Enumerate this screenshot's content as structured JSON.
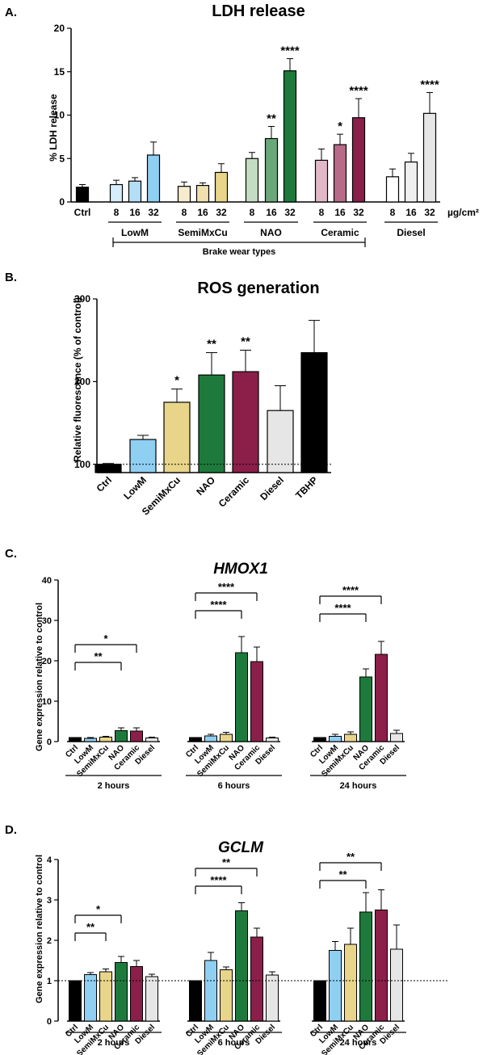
{
  "colors": {
    "ctrl": "#000000",
    "lowm": "#8fcff2",
    "semi": "#e8d58a",
    "nao": "#1e7a3c",
    "ceramic": "#8b1f4a",
    "diesel": "#e6e6e6",
    "tbhp": "#000000",
    "nao_light": "#c4ddc2",
    "nao_mid": "#6aa87a",
    "cer_light": "#e0b8c8",
    "cer_mid": "#b86a88",
    "low_light": "#d6eefb",
    "low_mid": "#b4def6",
    "semi_light": "#f6eccd",
    "semi_mid": "#efe0ad",
    "dsl_light": "#ffffff",
    "dsl_mid": "#f0f0f0"
  },
  "chart_data": [
    {
      "panel": "A.",
      "type": "bar",
      "title": "LDH release",
      "ylabel": "% LDH release",
      "ylim": [
        0,
        20
      ],
      "yticks": [
        "0",
        "5",
        "10",
        "15",
        "20"
      ],
      "unit": "µg/cm²",
      "bracket_label": "Brake wear types",
      "group_labels": [
        "LowM",
        "SemiMxCu",
        "NAO",
        "Ceramic",
        "Diesel"
      ],
      "categories": [
        "Ctrl",
        "8",
        "16",
        "32",
        "8",
        "16",
        "32",
        "8",
        "16",
        "32",
        "8",
        "16",
        "32",
        "8",
        "16",
        "32"
      ],
      "values": [
        1.7,
        2.0,
        2.4,
        5.4,
        1.8,
        1.9,
        3.4,
        5.0,
        7.3,
        15.1,
        4.8,
        6.6,
        9.7,
        2.9,
        4.6,
        10.2
      ],
      "errors": [
        0.3,
        0.5,
        0.4,
        1.5,
        0.5,
        0.3,
        1.0,
        0.7,
        1.4,
        1.4,
        1.3,
        1.2,
        2.2,
        0.9,
        1.0,
        2.4
      ],
      "significance": [
        "",
        "",
        "",
        "",
        "",
        "",
        "",
        "",
        "**",
        "****",
        "",
        "*",
        "****",
        "",
        "",
        "****"
      ]
    },
    {
      "panel": "B.",
      "type": "bar",
      "title": "ROS generation",
      "ylabel": "Relative fluorescence (% of control)",
      "ylim": [
        90,
        300
      ],
      "yticks": [
        "100",
        "200",
        "300"
      ],
      "reference_line": 100,
      "categories": [
        "Ctrl",
        "LowM",
        "SemiMxCu",
        "NAO",
        "Ceramic",
        "Diesel",
        "TBHP"
      ],
      "values": [
        100,
        130,
        175,
        208,
        212,
        165,
        235
      ],
      "errors": [
        1,
        5,
        16,
        27,
        26,
        30,
        39
      ],
      "significance": [
        "",
        "",
        "*",
        "**",
        "**",
        "",
        ""
      ]
    },
    {
      "panel": "C.",
      "type": "bar",
      "title": "HMOX1",
      "ylabel": "Gene expression relative to control",
      "ylim": [
        0,
        40
      ],
      "yticks": [
        "0",
        "10",
        "20",
        "30",
        "40"
      ],
      "categories": [
        "Ctrl",
        "LowM",
        "SemiMxCu",
        "NAO",
        "Ceramic",
        "Diesel"
      ],
      "time_labels": [
        "2 hours",
        "6 hours",
        "24 hours"
      ],
      "series": [
        {
          "values": [
            1,
            0.8,
            1.1,
            2.7,
            2.6,
            0.9
          ],
          "errors": [
            0,
            0.2,
            0.2,
            0.7,
            0.8,
            0.2
          ]
        },
        {
          "values": [
            1,
            1.4,
            1.8,
            22,
            19.8,
            0.9
          ],
          "errors": [
            0,
            0.4,
            0.5,
            4,
            3.6,
            0.2
          ]
        },
        {
          "values": [
            1,
            1.3,
            1.8,
            16,
            21.6,
            2.0
          ],
          "errors": [
            0,
            0.5,
            0.6,
            2,
            3.2,
            0.8
          ]
        }
      ],
      "brackets": [
        {
          "panel": 0,
          "to": 4,
          "label": "*"
        },
        {
          "panel": 0,
          "to": 3,
          "label": "**"
        },
        {
          "panel": 1,
          "to": 4,
          "label": "****"
        },
        {
          "panel": 1,
          "to": 3,
          "label": "****"
        },
        {
          "panel": 2,
          "to": 4,
          "label": "****"
        },
        {
          "panel": 2,
          "to": 3,
          "label": "****"
        }
      ]
    },
    {
      "panel": "D.",
      "type": "bar",
      "title": "GCLM",
      "ylabel": "Gene expression relative to control",
      "ylim": [
        0,
        4
      ],
      "yticks": [
        "0",
        "1",
        "2",
        "3",
        "4"
      ],
      "reference_line": 1,
      "categories": [
        "Ctrl",
        "LowM",
        "SemiMxCu",
        "NAO",
        "Ceramic",
        "Diesel"
      ],
      "time_labels": [
        "2 hours",
        "6 hours",
        "24 hours"
      ],
      "series": [
        {
          "values": [
            1,
            1.15,
            1.22,
            1.45,
            1.35,
            1.1
          ],
          "errors": [
            0,
            0.05,
            0.07,
            0.15,
            0.15,
            0.06
          ]
        },
        {
          "values": [
            1,
            1.5,
            1.27,
            2.73,
            2.08,
            1.14
          ],
          "errors": [
            0,
            0.2,
            0.07,
            0.2,
            0.22,
            0.08
          ]
        },
        {
          "values": [
            1,
            1.75,
            1.9,
            2.7,
            2.75,
            1.78
          ],
          "errors": [
            0,
            0.22,
            0.4,
            0.48,
            0.5,
            0.6
          ]
        }
      ],
      "brackets": [
        {
          "panel": 0,
          "to": 3,
          "label": "*"
        },
        {
          "panel": 0,
          "to": 2,
          "label": "**"
        },
        {
          "panel": 1,
          "to": 4,
          "label": "**"
        },
        {
          "panel": 1,
          "to": 3,
          "label": "****"
        },
        {
          "panel": 2,
          "to": 4,
          "label": "**"
        },
        {
          "panel": 2,
          "to": 3,
          "label": "**"
        }
      ]
    }
  ]
}
